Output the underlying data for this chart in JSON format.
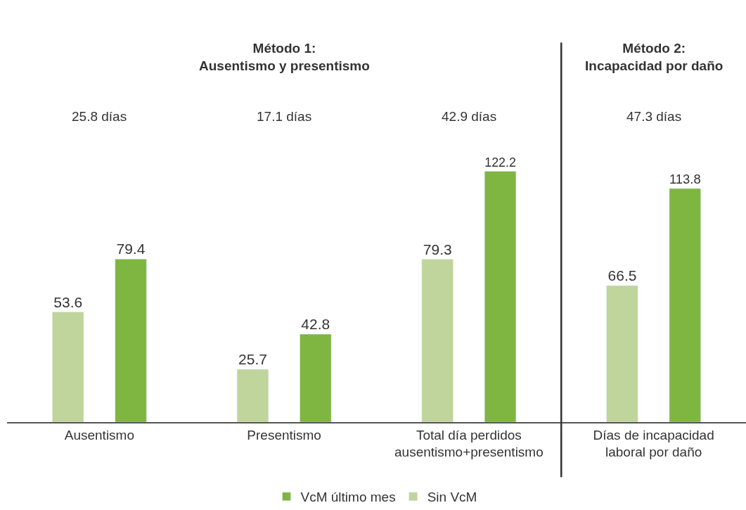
{
  "chart_data": {
    "type": "bar",
    "categories": [
      "Ausentismo",
      "Presentismo",
      "Total día perdidos\nausentismo+presentismo",
      "Días de incapacidad\nlaboral por daño"
    ],
    "series": [
      {
        "name": "Sin VcM",
        "color": "#bfd59b",
        "values": [
          53.6,
          25.7,
          79.3,
          66.5
        ]
      },
      {
        "name": "VcM último mes",
        "color": "#7fb541",
        "values": [
          79.4,
          42.8,
          122.2,
          113.8
        ]
      }
    ],
    "data_labels": true,
    "legend": "bottom",
    "annotations": [
      "Método 1:\nAusentismo y presentismo",
      "Método 2:\nIncapacidad por daño",
      "25.8 días",
      "17.1 días",
      "42.9 días",
      "47.3 días"
    ]
  }
}
